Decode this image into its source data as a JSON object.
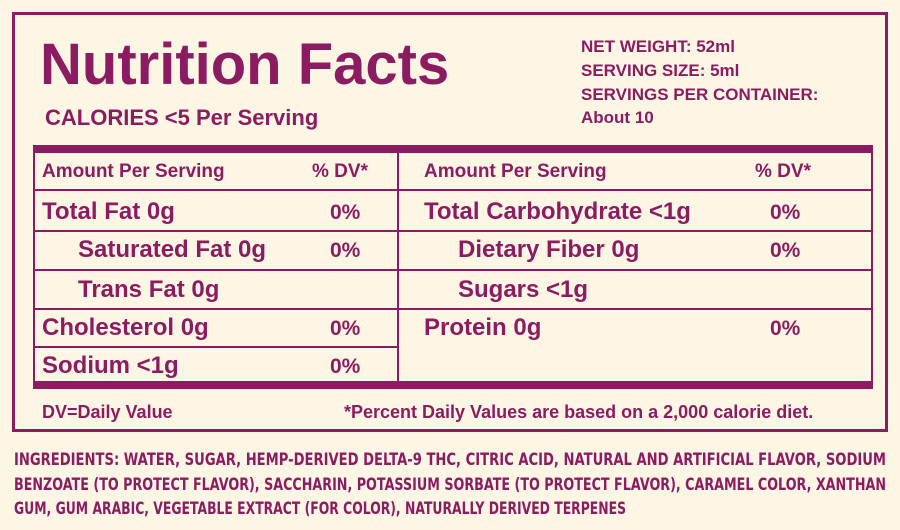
{
  "header": {
    "title": "Nutrition Facts",
    "calories": "CALORIES <5 Per Serving",
    "info": [
      "NET WEIGHT: 52ml",
      "SERVING SIZE: 5ml",
      "SERVINGS PER CONTAINER:",
      "About 10"
    ]
  },
  "table": {
    "left": {
      "header": [
        "Amount Per Serving",
        "% DV*"
      ],
      "rows": [
        [
          "Total Fat 0g",
          "0%"
        ],
        [
          "Saturated Fat 0g",
          "0%"
        ],
        [
          "Trans Fat 0g"
        ],
        [
          "Cholesterol 0g",
          "0%"
        ],
        [
          "Sodium <1g",
          "0%"
        ]
      ]
    },
    "right": {
      "header": [
        "Amount Per Serving",
        "% DV*"
      ],
      "rows": [
        [
          "Total Carbohydrate <1g",
          "0%"
        ],
        [
          "Dietary Fiber 0g",
          "0%"
        ],
        [
          "Sugars <1g"
        ],
        [
          "Protein 0g",
          "0%"
        ]
      ]
    }
  },
  "footer": {
    "left": "DV=Daily Value",
    "right": "*Percent Daily Values are based on a 2,000 calorie diet."
  },
  "ingredients": [
    "INGREDIENTS: WATER, SUGAR, HEMP-DERIVED DELTA-9 THC, CITRIC ACID, NATURAL AND ARTIFICIAL FLAVOR, SODIUM",
    "BENZOATE (TO PROTECT FLAVOR), SACCHARIN, POTASSIUM SORBATE (TO PROTECT FLAVOR), CARAMEL COLOR, XANTHAN",
    "GUM, GUM ARABIC, VEGETABLE EXTRACT (FOR COLOR), NATURALLY DERIVED TERPENES"
  ]
}
